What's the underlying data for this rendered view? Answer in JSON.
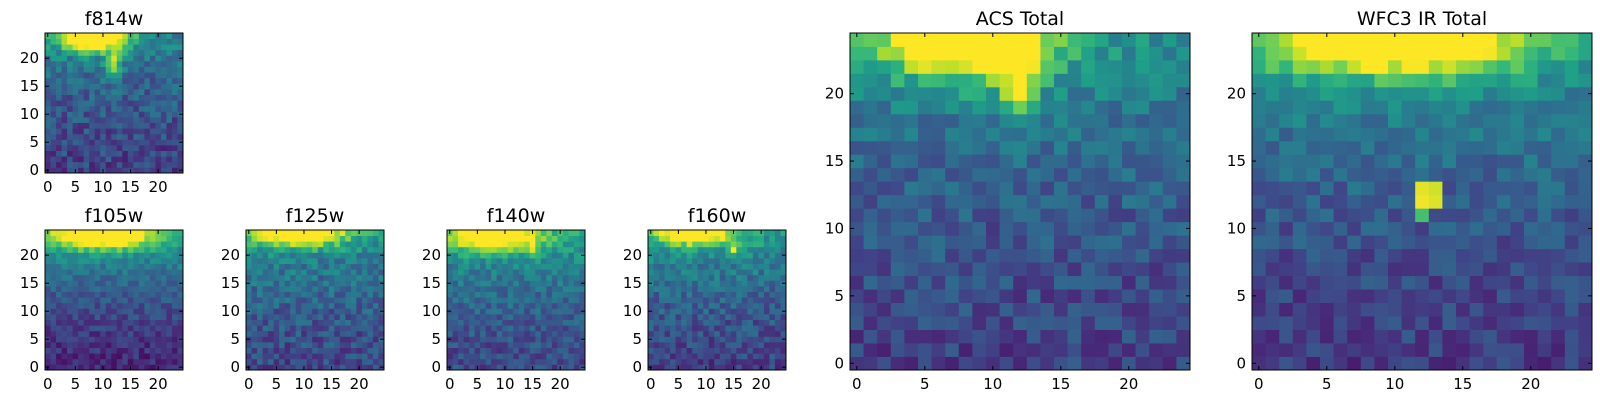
{
  "chart_data": [
    {
      "type": "heatmap",
      "title": "f814w",
      "x_ticks": [
        "0",
        "5",
        "10",
        "15",
        "20"
      ],
      "y_ticks": [
        "0",
        "5",
        "10",
        "15",
        "20"
      ],
      "xlim": [
        -0.5,
        24.5
      ],
      "ylim": [
        -0.5,
        24.5
      ],
      "colormap": "viridis",
      "grid_size": 25,
      "hotspots": [
        {
          "x": 8,
          "y": 24,
          "rx": 6,
          "ry": 2.6,
          "amp": 1.0
        },
        {
          "x": 12,
          "y": 19,
          "rx": 1.5,
          "ry": 3,
          "amp": 0.45
        }
      ],
      "background": 0.2,
      "gradient": 0.25,
      "noise": 0.25,
      "seed": 11
    },
    {
      "type": "heatmap",
      "title": "f105w",
      "x_ticks": [
        "0",
        "5",
        "10",
        "15",
        "20"
      ],
      "y_ticks": [
        "0",
        "5",
        "10",
        "15",
        "20"
      ],
      "xlim": [
        -0.5,
        24.5
      ],
      "ylim": [
        -0.5,
        24.5
      ],
      "colormap": "viridis",
      "grid_size": 25,
      "hotspots": [
        {
          "x": 10,
          "y": 24,
          "rx": 9,
          "ry": 2.8,
          "amp": 0.85
        }
      ],
      "background": 0.12,
      "gradient": 0.45,
      "noise": 0.18,
      "seed": 23
    },
    {
      "type": "heatmap",
      "title": "f125w",
      "x_ticks": [
        "0",
        "5",
        "10",
        "15",
        "20"
      ],
      "y_ticks": [
        "0",
        "5",
        "10",
        "15",
        "20"
      ],
      "xlim": [
        -0.5,
        24.5
      ],
      "ylim": [
        -0.5,
        24.5
      ],
      "colormap": "viridis",
      "grid_size": 25,
      "hotspots": [
        {
          "x": 9,
          "y": 24,
          "rx": 8,
          "ry": 2.4,
          "amp": 0.85
        }
      ],
      "background": 0.22,
      "gradient": 0.3,
      "noise": 0.25,
      "seed": 37
    },
    {
      "type": "heatmap",
      "title": "f140w",
      "x_ticks": [
        "0",
        "5",
        "10",
        "15",
        "20"
      ],
      "y_ticks": [
        "0",
        "5",
        "10",
        "15",
        "20"
      ],
      "xlim": [
        -0.5,
        24.5
      ],
      "ylim": [
        -0.5,
        24.5
      ],
      "colormap": "viridis",
      "grid_size": 25,
      "hotspots": [
        {
          "x": 8,
          "y": 23.5,
          "rx": 8,
          "ry": 2.6,
          "amp": 0.8
        },
        {
          "x": 15,
          "y": 21,
          "rx": 1.2,
          "ry": 1.2,
          "amp": 0.35
        }
      ],
      "background": 0.22,
      "gradient": 0.35,
      "noise": 0.22,
      "seed": 41
    },
    {
      "type": "heatmap",
      "title": "f160w",
      "x_ticks": [
        "0",
        "5",
        "10",
        "15",
        "20"
      ],
      "y_ticks": [
        "0",
        "5",
        "10",
        "15",
        "20"
      ],
      "xlim": [
        -0.5,
        24.5
      ],
      "ylim": [
        -0.5,
        24.5
      ],
      "colormap": "viridis",
      "grid_size": 25,
      "hotspots": [
        {
          "x": 8,
          "y": 24,
          "rx": 7,
          "ry": 2.2,
          "amp": 0.75
        },
        {
          "x": 15,
          "y": 21,
          "rx": 1.0,
          "ry": 1.0,
          "amp": 0.5
        }
      ],
      "background": 0.2,
      "gradient": 0.35,
      "noise": 0.24,
      "seed": 53
    },
    {
      "type": "heatmap",
      "title": "ACS Total",
      "x_ticks": [
        "0",
        "5",
        "10",
        "15",
        "20"
      ],
      "y_ticks": [
        "0",
        "5",
        "10",
        "15",
        "20"
      ],
      "xlim": [
        -0.5,
        24.5
      ],
      "ylim": [
        -0.5,
        24.5
      ],
      "colormap": "viridis",
      "grid_size": 25,
      "hotspots": [
        {
          "x": 8,
          "y": 24,
          "rx": 6,
          "ry": 2.8,
          "amp": 0.9
        },
        {
          "x": 12,
          "y": 21,
          "rx": 1.4,
          "ry": 3,
          "amp": 0.5
        }
      ],
      "background": 0.2,
      "gradient": 0.3,
      "noise": 0.22,
      "seed": 67
    },
    {
      "type": "heatmap",
      "title": "WFC3 IR Total",
      "x_ticks": [
        "0",
        "5",
        "10",
        "15",
        "20"
      ],
      "y_ticks": [
        "0",
        "5",
        "10",
        "15",
        "20"
      ],
      "xlim": [
        -0.5,
        24.5
      ],
      "ylim": [
        -0.5,
        24.5
      ],
      "colormap": "viridis",
      "grid_size": 25,
      "hotspots": [
        {
          "x": 10,
          "y": 24,
          "rx": 9,
          "ry": 2.6,
          "amp": 0.85
        }
      ],
      "background": 0.18,
      "gradient": 0.35,
      "noise": 0.2,
      "seed": 79,
      "bright_pixels": [
        {
          "x": 12,
          "y": 12,
          "v": 0.98
        },
        {
          "x": 13,
          "y": 12,
          "v": 0.95
        },
        {
          "x": 12,
          "y": 13,
          "v": 0.96
        },
        {
          "x": 13,
          "y": 13,
          "v": 0.93
        },
        {
          "x": 12,
          "y": 11,
          "v": 0.7
        }
      ]
    }
  ]
}
